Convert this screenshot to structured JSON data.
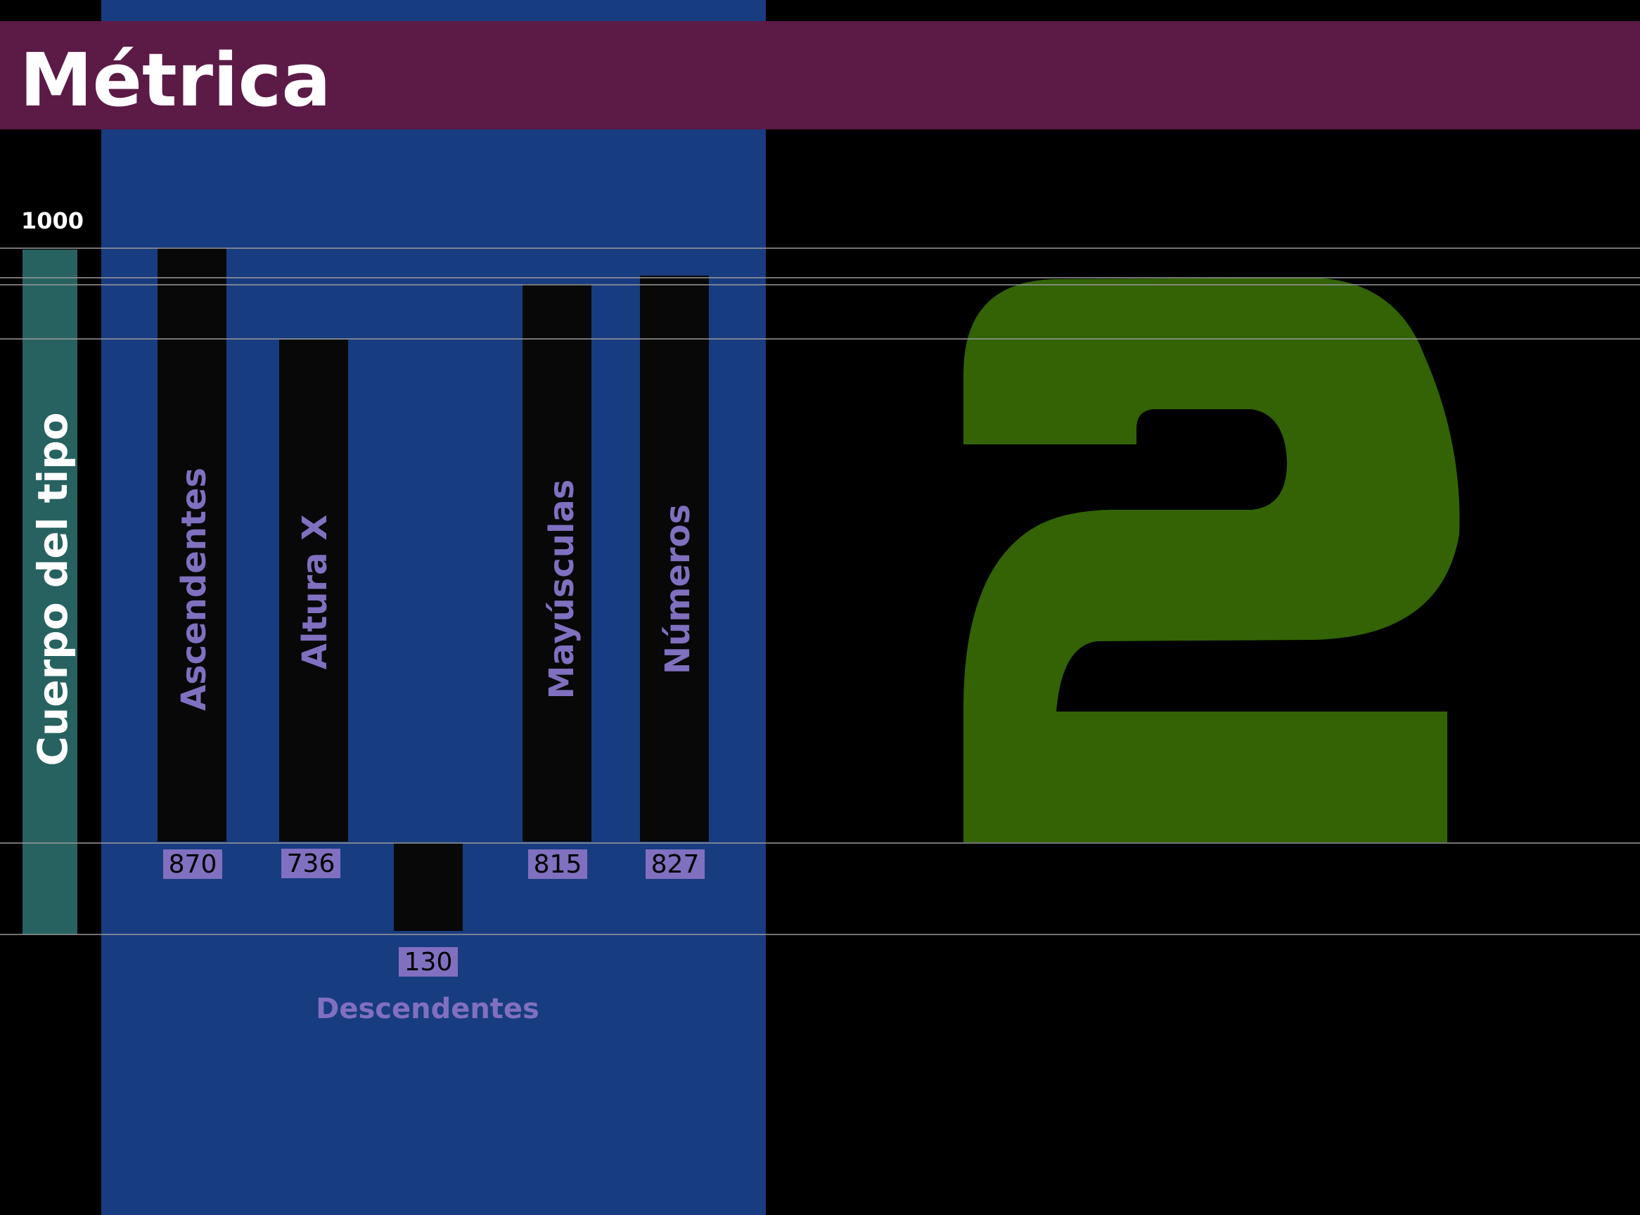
{
  "title": "Métrica",
  "em_label": "1000",
  "body_label": "Cuerpo del tipo",
  "metrics": [
    {
      "name": "ascenders",
      "label": "Ascendentes",
      "value": 870
    },
    {
      "name": "x-height",
      "label": "Altura X",
      "value": 736
    },
    {
      "name": "descenders",
      "label": "Descendentes",
      "value": 130
    },
    {
      "name": "caps",
      "label": "Mayúsculas",
      "value": 815
    },
    {
      "name": "numbers",
      "label": "Números",
      "value": 827
    }
  ],
  "sample_glyph": "2",
  "colors": {
    "background": "#000000",
    "title_bar": "#5c1a47",
    "panel": "#183c80",
    "body_bar": "#276260",
    "metric_bar": "#080808",
    "label": "#8070bf",
    "value_box": "#8070bf",
    "glyph": "#336305",
    "guide_line": "#9a9a9a",
    "text_light": "#ffffff"
  }
}
